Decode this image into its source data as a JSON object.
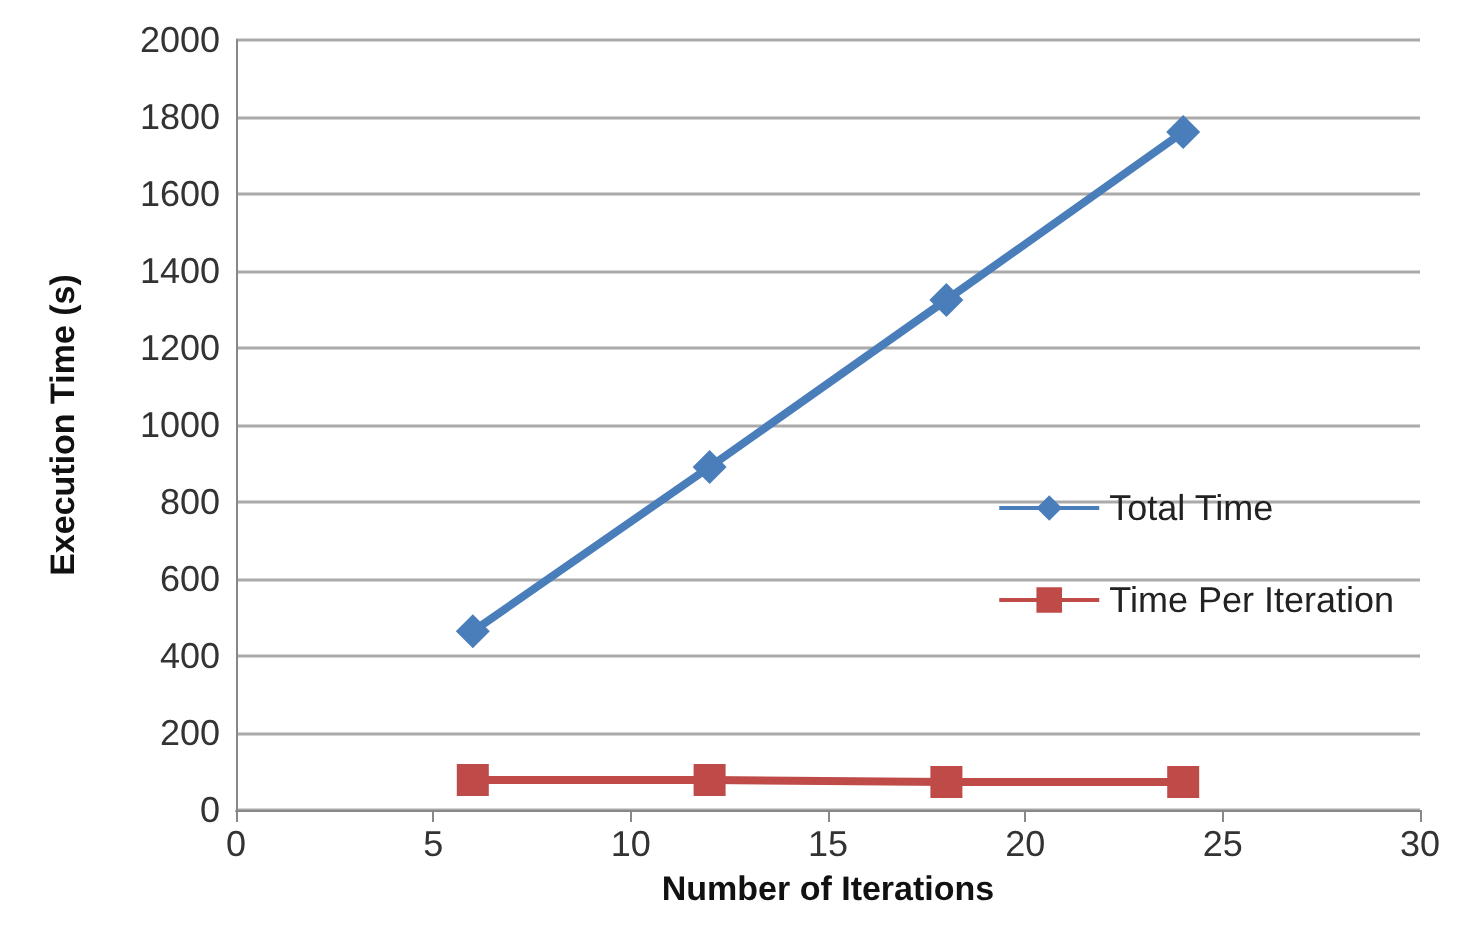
{
  "chart_data": {
    "type": "line",
    "xlabel": "Number of Iterations",
    "ylabel": "Execution Time (s)",
    "x": [
      6,
      12,
      18,
      24
    ],
    "series": [
      {
        "name": "Total Time",
        "color": "#4a7ebb",
        "marker": "diamond",
        "values": [
          464,
          891,
          1325,
          1761
        ]
      },
      {
        "name": "Time Per Iteration",
        "color": "#be4b48",
        "marker": "square",
        "values": [
          78,
          78,
          73,
          73
        ]
      }
    ],
    "xlim": [
      0,
      30
    ],
    "xticks": [
      0,
      5,
      10,
      15,
      20,
      25,
      30
    ],
    "ylim": [
      0,
      2000
    ],
    "yticks": [
      0,
      200,
      400,
      600,
      800,
      1000,
      1200,
      1400,
      1600,
      1800,
      2000
    ],
    "grid": "y",
    "legend": "right",
    "line_style": "solid"
  }
}
